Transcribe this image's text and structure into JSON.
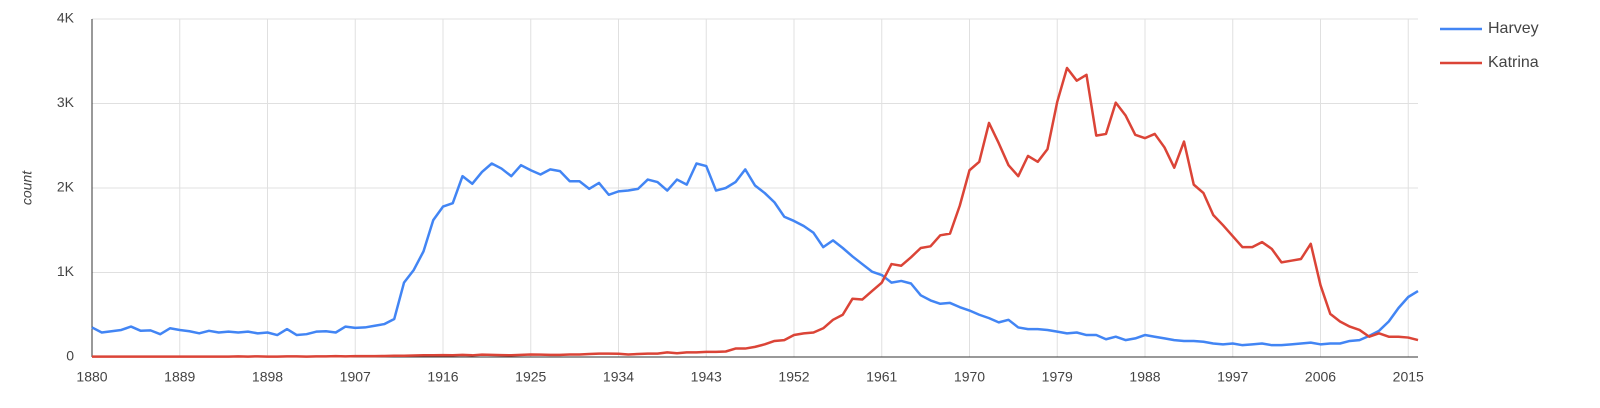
{
  "chart_data": {
    "type": "line",
    "y_label": "count",
    "x": [
      1880,
      1881,
      1882,
      1883,
      1884,
      1885,
      1886,
      1887,
      1888,
      1889,
      1890,
      1891,
      1892,
      1893,
      1894,
      1895,
      1896,
      1897,
      1898,
      1899,
      1900,
      1901,
      1902,
      1903,
      1904,
      1905,
      1906,
      1907,
      1908,
      1909,
      1910,
      1911,
      1912,
      1913,
      1914,
      1915,
      1916,
      1917,
      1918,
      1919,
      1920,
      1921,
      1922,
      1923,
      1924,
      1925,
      1926,
      1927,
      1928,
      1929,
      1930,
      1931,
      1932,
      1933,
      1934,
      1935,
      1936,
      1937,
      1938,
      1939,
      1940,
      1941,
      1942,
      1943,
      1944,
      1945,
      1946,
      1947,
      1948,
      1949,
      1950,
      1951,
      1952,
      1953,
      1954,
      1955,
      1956,
      1957,
      1958,
      1959,
      1960,
      1961,
      1962,
      1963,
      1964,
      1965,
      1966,
      1967,
      1968,
      1969,
      1970,
      1971,
      1972,
      1973,
      1974,
      1975,
      1976,
      1977,
      1978,
      1979,
      1980,
      1981,
      1982,
      1983,
      1984,
      1985,
      1986,
      1987,
      1988,
      1989,
      1990,
      1991,
      1992,
      1993,
      1994,
      1995,
      1996,
      1997,
      1998,
      1999,
      2000,
      2001,
      2002,
      2003,
      2004,
      2005,
      2006,
      2007,
      2008,
      2009,
      2010,
      2011,
      2012,
      2013,
      2014,
      2015,
      2016
    ],
    "series": [
      {
        "name": "Harvey",
        "color": "#4285f4",
        "values": [
          350,
          290,
          305,
          320,
          360,
          310,
          315,
          270,
          340,
          320,
          305,
          280,
          310,
          290,
          300,
          290,
          300,
          280,
          290,
          260,
          330,
          260,
          270,
          300,
          305,
          290,
          360,
          345,
          350,
          370,
          390,
          450,
          880,
          1030,
          1250,
          1620,
          1780,
          1820,
          2140,
          2050,
          2190,
          2290,
          2230,
          2140,
          2270,
          2210,
          2160,
          2220,
          2200,
          2080,
          2080,
          1990,
          2060,
          1920,
          1960,
          1970,
          1990,
          2100,
          2070,
          1970,
          2100,
          2040,
          2290,
          2260,
          1970,
          2000,
          2070,
          2220,
          2030,
          1940,
          1830,
          1660,
          1610,
          1550,
          1470,
          1300,
          1380,
          1290,
          1190,
          1100,
          1010,
          970,
          880,
          900,
          870,
          730,
          670,
          630,
          640,
          590,
          550,
          500,
          460,
          410,
          440,
          350,
          330,
          330,
          320,
          300,
          280,
          290,
          260,
          260,
          210,
          240,
          200,
          220,
          260,
          240,
          220,
          200,
          190,
          190,
          180,
          160,
          150,
          160,
          140,
          150,
          160,
          140,
          140,
          150,
          160,
          170,
          150,
          160,
          160,
          190,
          200,
          250,
          310,
          420,
          580,
          710,
          780
        ]
      },
      {
        "name": "Katrina",
        "color": "#db4437",
        "values": [
          5,
          5,
          5,
          5,
          5,
          5,
          5,
          5,
          5,
          5,
          5,
          5,
          5,
          5,
          5,
          8,
          5,
          8,
          5,
          5,
          8,
          8,
          5,
          8,
          8,
          10,
          8,
          10,
          10,
          10,
          12,
          15,
          15,
          18,
          20,
          20,
          22,
          20,
          25,
          20,
          28,
          25,
          22,
          20,
          25,
          30,
          28,
          25,
          25,
          30,
          30,
          35,
          40,
          40,
          38,
          30,
          35,
          40,
          40,
          55,
          45,
          55,
          55,
          60,
          60,
          65,
          100,
          100,
          120,
          150,
          190,
          200,
          260,
          280,
          290,
          340,
          440,
          500,
          690,
          680,
          780,
          880,
          1100,
          1080,
          1180,
          1290,
          1310,
          1440,
          1460,
          1790,
          2210,
          2310,
          2770,
          2530,
          2270,
          2140,
          2380,
          2310,
          2460,
          3020,
          3420,
          3270,
          3340,
          2620,
          2640,
          3010,
          2860,
          2630,
          2590,
          2640,
          2480,
          2240,
          2550,
          2040,
          1940,
          1680,
          1560,
          1430,
          1300,
          1300,
          1360,
          1280,
          1120,
          1140,
          1160,
          1340,
          850,
          510,
          420,
          360,
          320,
          240,
          280,
          240,
          240,
          230,
          200
        ]
      }
    ],
    "xlim": [
      1880,
      2016
    ],
    "xticks": [
      1880,
      1889,
      1898,
      1907,
      1916,
      1925,
      1934,
      1943,
      1952,
      1961,
      1970,
      1979,
      1988,
      1997,
      2006,
      2015
    ],
    "ylim": [
      0,
      4000
    ],
    "yticks": [
      0,
      {
        "value": 1000,
        "label": "1K"
      },
      {
        "value": 2000,
        "label": "2K"
      },
      {
        "value": 3000,
        "label": "3K"
      },
      {
        "value": 4000,
        "label": "4K"
      }
    ],
    "grid": true,
    "legend": "right"
  }
}
